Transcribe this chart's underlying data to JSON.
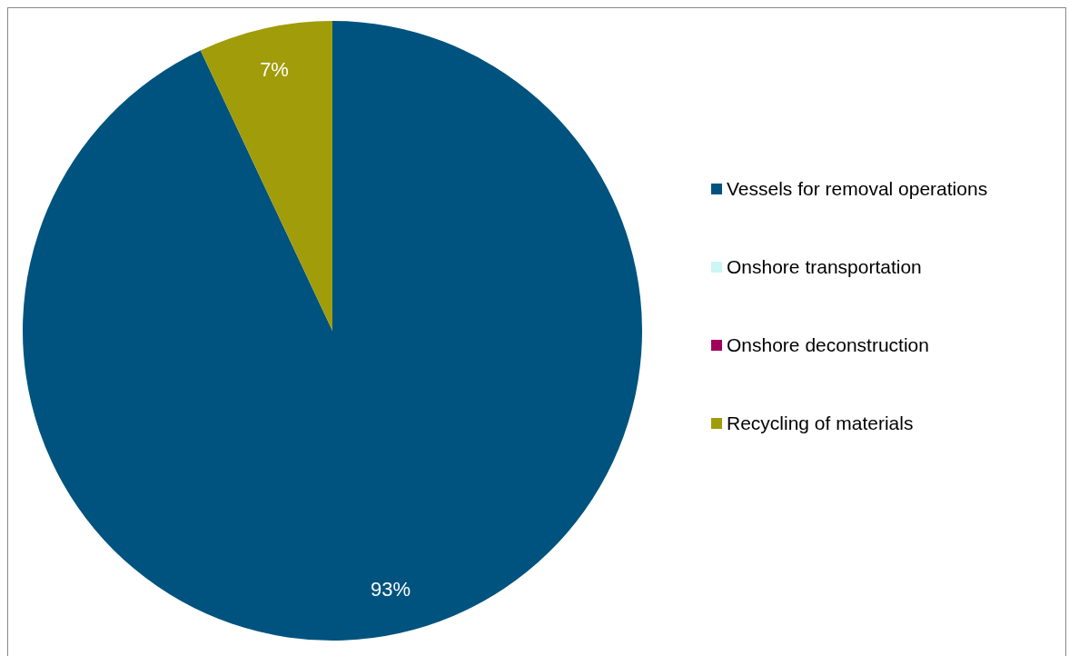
{
  "chart_data": {
    "type": "pie",
    "categories": [
      "Vessels for removal operations",
      "Onshore transportation",
      "Onshore deconstruction",
      "Recycling of materials"
    ],
    "values": [
      93,
      0,
      0,
      7
    ],
    "colors": [
      "#00537e",
      "#ccf5f5",
      "#a0005a",
      "#a09c0a"
    ],
    "value_labels": [
      "93%",
      null,
      null,
      "7%"
    ],
    "legend": "right"
  }
}
